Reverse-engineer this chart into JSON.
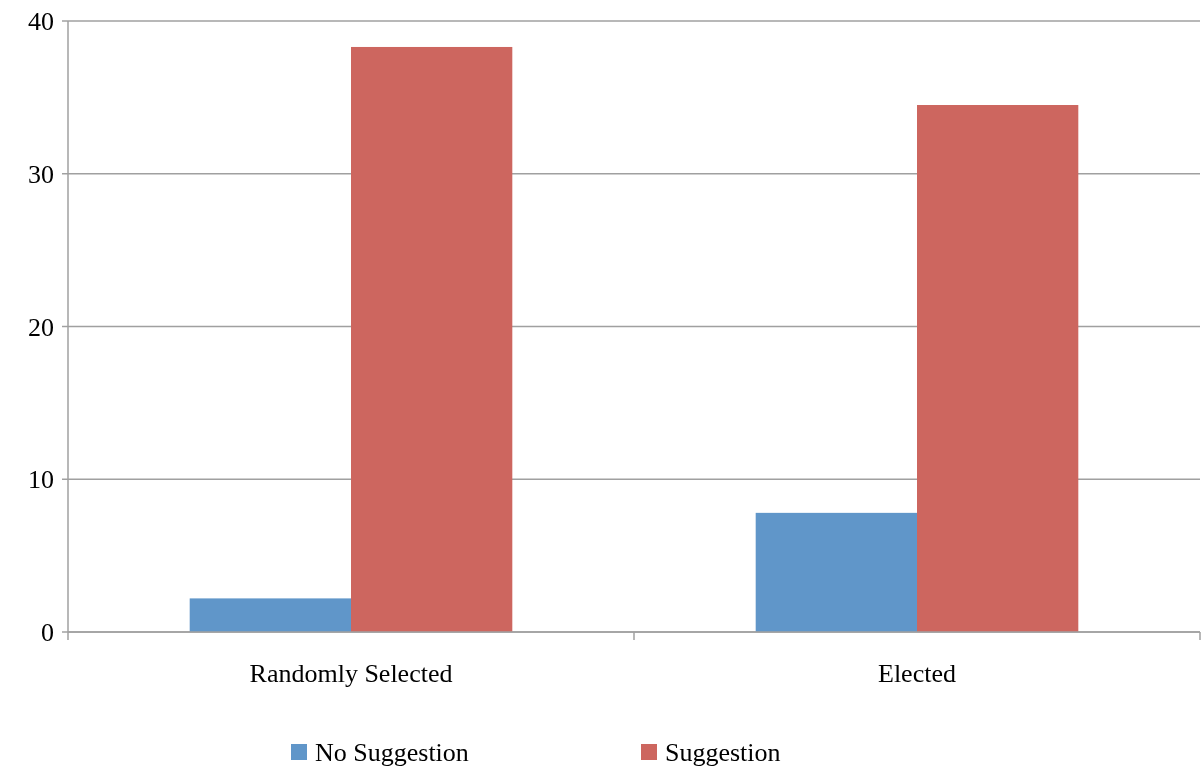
{
  "chart_data": {
    "type": "bar",
    "categories": [
      "Randomly Selected",
      "Elected"
    ],
    "series": [
      {
        "name": "No Suggestion",
        "color": "#6096c9",
        "values": [
          2.2,
          7.8
        ]
      },
      {
        "name": "Suggestion",
        "color": "#cd665f",
        "values": [
          38.3,
          34.5
        ]
      }
    ],
    "ylim": [
      0,
      40
    ],
    "yticks": [
      0,
      10,
      20,
      30,
      40
    ],
    "grid": "y",
    "legend": "bottom"
  }
}
